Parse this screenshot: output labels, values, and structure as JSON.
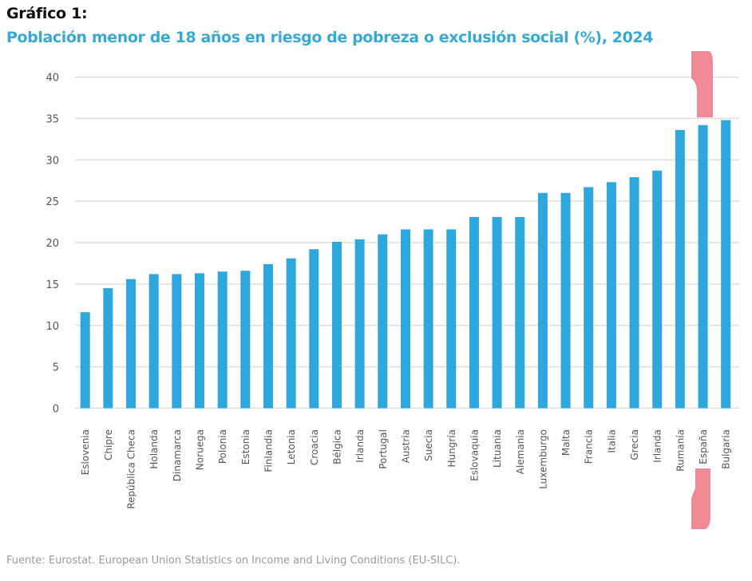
{
  "header": {
    "figure_label": "Gráfico 1:",
    "title": "Población menor de 18 años en riesgo de pobreza o exclusión social (%), 2024"
  },
  "footer": {
    "source": "Fuente: Eurostat. European Union Statistics on Income and Living Conditions (EU-SILC)."
  },
  "colors": {
    "bar": "#2ea7dc",
    "title": "#38a9d4",
    "grid": "#dedede",
    "highlight": "#f08a96"
  },
  "annotation": {
    "type": "highlight-bracket",
    "target_category": "España"
  },
  "chart_data": {
    "type": "bar",
    "title": "Población menor de 18 años en riesgo de pobreza o exclusión social (%), 2024",
    "xlabel": "",
    "ylabel": "",
    "ylim": [
      0,
      40
    ],
    "yticks": [
      0,
      5,
      10,
      15,
      20,
      25,
      30,
      35,
      40
    ],
    "grid": true,
    "legend": "none",
    "categories": [
      "Eslovenia",
      "Chipre",
      "República Checa",
      "Holanda",
      "Dinamarca",
      "Noruega",
      "Polonia",
      "Estonia",
      "Finlandia",
      "Letonia",
      "Croacia",
      "Bélgica",
      "Irlanda",
      "Portugal",
      "Austria",
      "Suecia",
      "Hungría",
      "Eslovaquia",
      "Lituania",
      "Alemania",
      "Luxemburgo",
      "Malta",
      "Francia",
      "Italia",
      "Grecia",
      "Irlanda",
      "Rumanía",
      "España",
      "Bulgaria"
    ],
    "values": [
      11.6,
      14.5,
      15.6,
      16.2,
      16.2,
      16.3,
      16.5,
      16.6,
      17.4,
      18.1,
      19.2,
      20.1,
      20.4,
      21.0,
      21.6,
      21.6,
      21.6,
      23.1,
      23.1,
      23.1,
      26.0,
      26.0,
      26.7,
      27.3,
      27.9,
      28.7,
      33.6,
      34.2,
      34.8
    ]
  }
}
